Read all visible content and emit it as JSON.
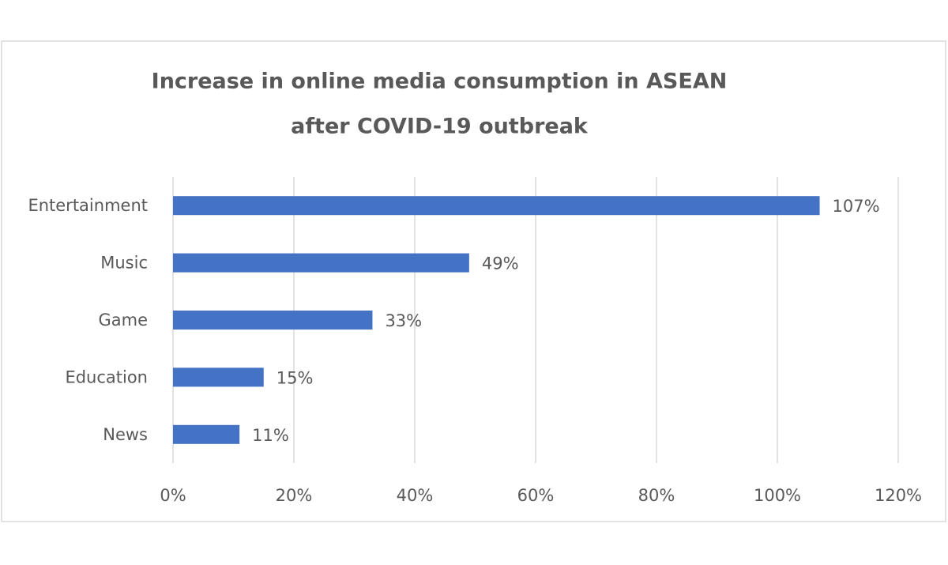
{
  "chart_data": {
    "type": "bar",
    "orientation": "horizontal",
    "title": [
      "Increase in online media consumption in ASEAN",
      "after COVID-19 outbreak"
    ],
    "categories": [
      "Entertainment",
      "Music",
      "Game",
      "Education",
      "News"
    ],
    "values": [
      107,
      49,
      33,
      15,
      11
    ],
    "value_labels": [
      "107%",
      "49%",
      "33%",
      "15%",
      "11%"
    ],
    "color": "#4472c4",
    "xlim": [
      0,
      120
    ],
    "xticks": [
      {
        "value": 0,
        "label": "0%"
      },
      {
        "value": 20,
        "label": "20%"
      },
      {
        "value": 40,
        "label": "40%"
      },
      {
        "value": 60,
        "label": "60%"
      },
      {
        "value": 80,
        "label": "80%"
      },
      {
        "value": 100,
        "label": "100%"
      },
      {
        "value": 120,
        "label": "120%"
      }
    ],
    "grid": true
  }
}
